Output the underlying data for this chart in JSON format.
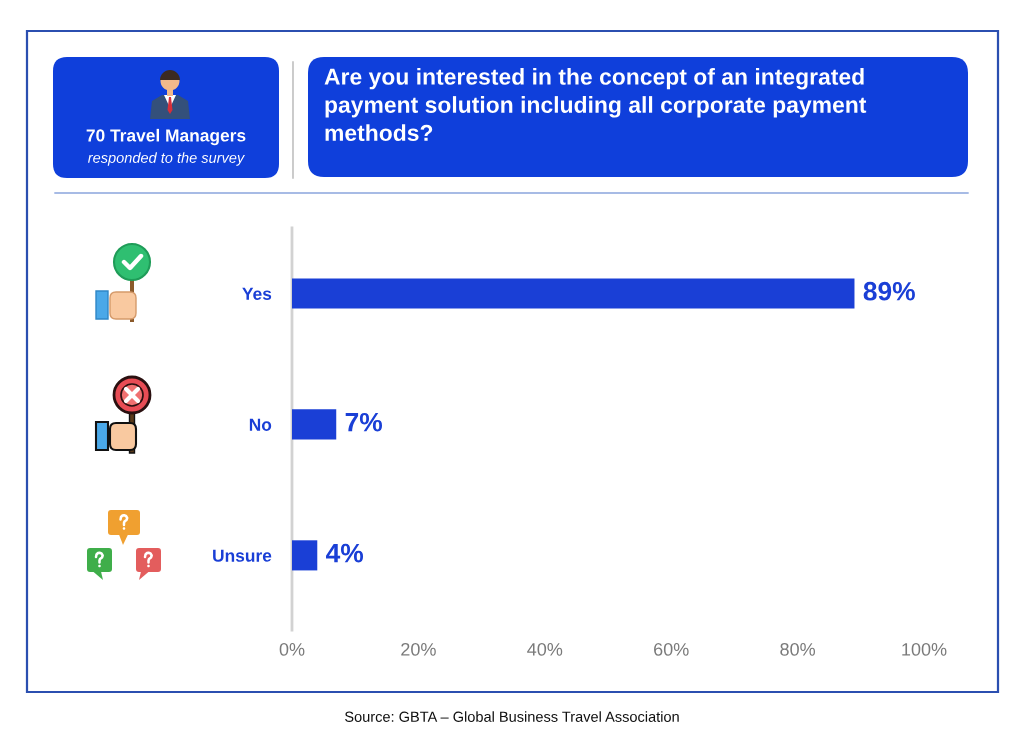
{
  "chart_data": {
    "type": "bar",
    "orientation": "horizontal",
    "title": "Are you interested in the concept of an integrated payment solution including all corporate payment methods?",
    "categories": [
      "Yes",
      "No",
      "Unsure"
    ],
    "values": [
      89,
      7,
      4
    ],
    "value_labels": [
      "89%",
      "7%",
      "4%"
    ],
    "color": "#1a3fd6",
    "xlim": [
      0,
      100
    ],
    "xticks": [
      {
        "value": 0,
        "label": "0%"
      },
      {
        "value": 20,
        "label": "20%"
      },
      {
        "value": 40,
        "label": "40%"
      },
      {
        "value": 60,
        "label": "60%"
      },
      {
        "value": 80,
        "label": "80%"
      },
      {
        "value": 100,
        "label": "100%"
      }
    ],
    "grid": false,
    "annotations": [
      "70 Travel Managers",
      "responded to the survey",
      "Source: GBTA – Global Business Travel Association"
    ]
  }
}
